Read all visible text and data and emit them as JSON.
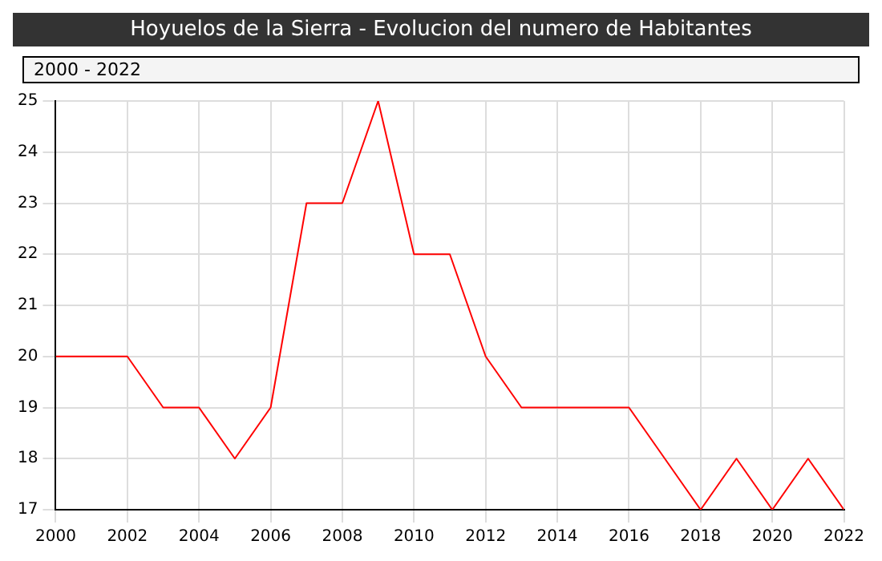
{
  "chart_data": {
    "type": "line",
    "title": "Hoyuelos de la Sierra - Evolucion del numero de Habitantes",
    "subtitle": "2000 - 2022",
    "x": [
      2000,
      2001,
      2002,
      2003,
      2004,
      2005,
      2006,
      2007,
      2008,
      2009,
      2010,
      2011,
      2012,
      2013,
      2014,
      2015,
      2016,
      2017,
      2018,
      2019,
      2020,
      2021,
      2022
    ],
    "series": [
      {
        "color": "#ff0000",
        "values": [
          20,
          20,
          20,
          19,
          19,
          18,
          19,
          23,
          23,
          25,
          22,
          22,
          20,
          19,
          19,
          19,
          19,
          18,
          17,
          18,
          17,
          18,
          17
        ]
      }
    ],
    "xlim": [
      2000,
      2022
    ],
    "xticks": [
      2000,
      2002,
      2004,
      2006,
      2008,
      2010,
      2012,
      2014,
      2016,
      2018,
      2020,
      2022
    ],
    "ylim": [
      17,
      25
    ],
    "yticks": [
      17,
      18,
      19,
      20,
      21,
      22,
      23,
      24,
      25
    ],
    "grid": true,
    "legend": false,
    "marker": "none",
    "line_style": "solid"
  }
}
